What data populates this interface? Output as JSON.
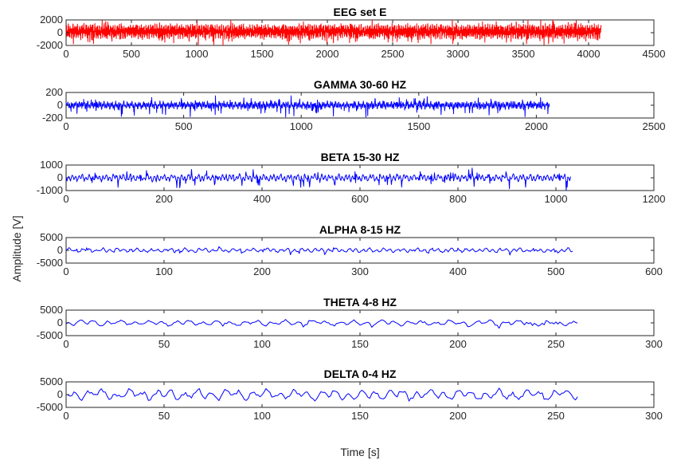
{
  "figure": {
    "ylabel": "Amplitude [V]",
    "xlabel": "Time [s]"
  },
  "chart_data": [
    {
      "type": "line",
      "title": "EEG set E",
      "color": "#ff0000",
      "xlim": [
        0,
        4500
      ],
      "ylim": [
        -2000,
        2000
      ],
      "xticks": [
        0,
        500,
        1000,
        1500,
        2000,
        2500,
        3000,
        3500,
        4000,
        4500
      ],
      "yticks": [
        -2000,
        0,
        2000
      ],
      "series": [
        {
          "n_samples": 4097,
          "amplitude": 1100,
          "offset": 200,
          "spikes": 900
        }
      ]
    },
    {
      "type": "line",
      "title": "GAMMA 30-60 HZ",
      "color": "#0000ff",
      "xlim": [
        0,
        2500
      ],
      "ylim": [
        -200,
        200
      ],
      "xticks": [
        0,
        500,
        1000,
        1500,
        2000,
        2500
      ],
      "yticks": [
        -200,
        0,
        200
      ],
      "series": [
        {
          "n_samples": 2056,
          "amplitude": 60,
          "offset": 0,
          "spikes": 90
        }
      ]
    },
    {
      "type": "line",
      "title": "BETA 15-30 HZ",
      "color": "#0000ff",
      "xlim": [
        0,
        1200
      ],
      "ylim": [
        -1000,
        1000
      ],
      "xticks": [
        0,
        200,
        400,
        600,
        800,
        1000,
        1200
      ],
      "yticks": [
        -1000,
        0,
        1000
      ],
      "series": [
        {
          "n_samples": 1031,
          "amplitude": 300,
          "offset": 0,
          "spikes": 500
        }
      ]
    },
    {
      "type": "line",
      "title": "ALPHA 8-15 HZ",
      "color": "#0000ff",
      "xlim": [
        0,
        600
      ],
      "ylim": [
        -5000,
        5000
      ],
      "xticks": [
        0,
        100,
        200,
        300,
        400,
        500,
        600
      ],
      "yticks": [
        -5000,
        0,
        5000
      ],
      "series": [
        {
          "n_samples": 518,
          "amplitude": 900,
          "offset": 0,
          "spikes": 700
        }
      ]
    },
    {
      "type": "line",
      "title": "THETA 4-8 HZ",
      "color": "#0000ff",
      "xlim": [
        0,
        300
      ],
      "ylim": [
        -5000,
        5000
      ],
      "xticks": [
        0,
        50,
        100,
        150,
        200,
        250,
        300
      ],
      "yticks": [
        -5000,
        0,
        5000
      ],
      "series": [
        {
          "n_samples": 262,
          "amplitude": 1200,
          "offset": 0,
          "spikes": 800
        }
      ]
    },
    {
      "type": "line",
      "title": "DELTA 0-4 HZ",
      "color": "#0000ff",
      "xlim": [
        0,
        300
      ],
      "ylim": [
        -5000,
        5000
      ],
      "xticks": [
        0,
        50,
        100,
        150,
        200,
        250,
        300
      ],
      "yticks": [
        -5000,
        0,
        5000
      ],
      "series": [
        {
          "n_samples": 262,
          "amplitude": 2300,
          "offset": 0,
          "spikes": 400
        }
      ]
    }
  ]
}
